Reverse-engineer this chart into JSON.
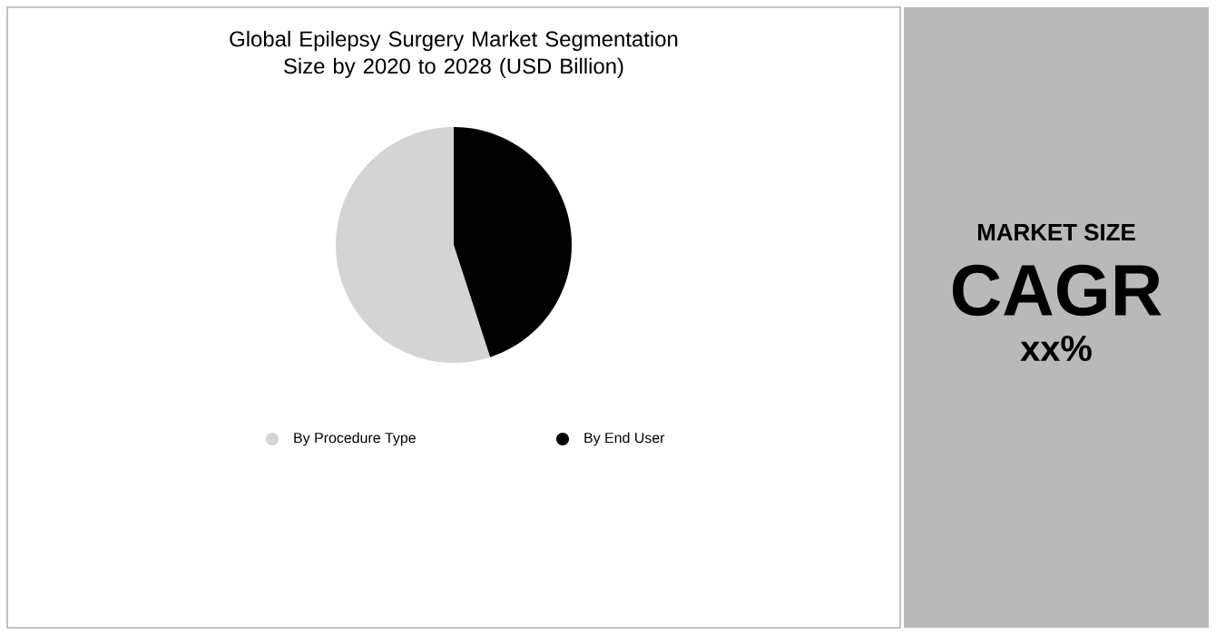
{
  "chart_data": {
    "type": "pie",
    "title": "Global Epilepsy Surgery Market Segmentation Size by 2020 to 2028 (USD Billion)",
    "categories": [
      "By Procedure Type",
      "By End User"
    ],
    "values": [
      55,
      45
    ],
    "colors": [
      "#d4d4d4",
      "#000000"
    ],
    "legend": "bottom",
    "annotations": [
      "MARKET SIZE",
      "CAGR",
      "xx%"
    ]
  }
}
